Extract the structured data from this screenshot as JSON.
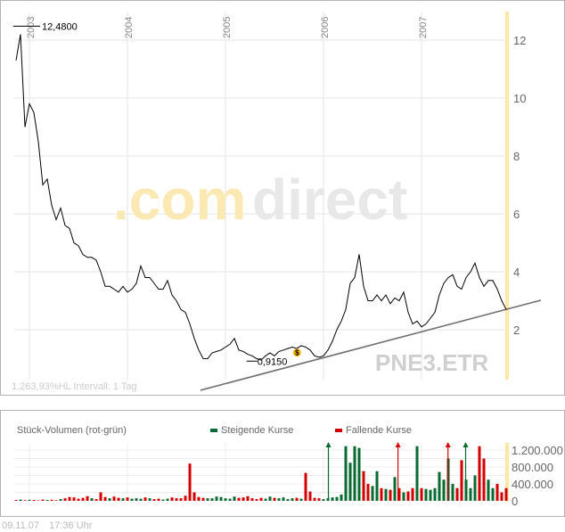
{
  "chart_data": [
    {
      "type": "line",
      "title": "PNE3.ETR",
      "symbol": "PNE3.ETR",
      "watermark_left": ".com",
      "watermark_right": "direct",
      "info": "1.263,93%HL  Intervall: 1 Tag",
      "x_tick_labels": [
        "2003",
        "2004",
        "2005",
        "2006",
        "2007"
      ],
      "x_ticks": [
        2003,
        2004,
        2005,
        2006,
        2007
      ],
      "y_tick_labels": [
        "2",
        "4",
        "6",
        "8",
        "10",
        "12"
      ],
      "y_ticks": [
        2,
        4,
        6,
        8,
        10,
        12
      ],
      "ylim": [
        0,
        13.3
      ],
      "xlim": [
        2002.864,
        2007.864
      ],
      "grid": true,
      "high_label": "12,4800",
      "high": {
        "t": 2002.89,
        "value": 12.48
      },
      "low_label": "0,9150",
      "low": {
        "t": 2005.27,
        "value": 0.915
      },
      "dividend_marker": {
        "label": "$",
        "t": 2005.73,
        "value": 1.15
      },
      "series": [
        {
          "name": "Kurs",
          "t_start": 2002.864,
          "t_step": 0.04545,
          "values": [
            11.3,
            12.2,
            9.0,
            9.8,
            9.5,
            8.5,
            7.0,
            7.2,
            6.3,
            5.8,
            6.2,
            5.6,
            5.5,
            5.0,
            4.9,
            4.6,
            4.5,
            4.5,
            4.4,
            4.0,
            3.5,
            3.5,
            3.4,
            3.3,
            3.5,
            3.3,
            3.4,
            3.6,
            4.2,
            3.8,
            3.8,
            3.6,
            3.4,
            3.4,
            3.7,
            3.2,
            3.0,
            2.7,
            2.6,
            2.2,
            1.7,
            1.3,
            1.0,
            1.0,
            1.2,
            1.25,
            1.3,
            1.4,
            1.5,
            1.7,
            1.3,
            1.25,
            1.15,
            1.1,
            1.0,
            0.95,
            1.1,
            1.2,
            1.1,
            1.25,
            1.3,
            1.35,
            1.4,
            1.35,
            1.45,
            1.4,
            1.3,
            1.1,
            1.05,
            1.1,
            1.3,
            1.6,
            2.0,
            2.3,
            2.7,
            3.6,
            3.8,
            4.6,
            3.5,
            3.0,
            3.0,
            3.2,
            3.0,
            3.2,
            2.9,
            3.1,
            3.0,
            3.3,
            2.6,
            2.2,
            2.3,
            2.1,
            2.2,
            2.4,
            2.6,
            3.2,
            3.6,
            3.8,
            3.9,
            3.5,
            3.4,
            3.8,
            4.0,
            4.3,
            3.8,
            3.5,
            3.7,
            3.7,
            3.4,
            3.0,
            2.7
          ]
        }
      ],
      "trendline": [
        {
          "t": 2004.745,
          "value": -0.09
        },
        {
          "t": 2008.218,
          "value": 3.02
        }
      ]
    },
    {
      "type": "bar",
      "title": "Stück-Volumen (rot-grün)",
      "legend": [
        {
          "label": "Steigende Kurse",
          "color": "#0a6b32"
        },
        {
          "label": "Fallende Kurse",
          "color": "#d40000"
        }
      ],
      "y_tick_labels": [
        "0",
        "400.000",
        "800.000",
        "1.200.000"
      ],
      "y_ticks": [
        0,
        400000,
        800000,
        1200000
      ],
      "ylim": [
        0,
        1300000
      ],
      "values_thousands": [
        20,
        30,
        15,
        25,
        20,
        10,
        30,
        20,
        25,
        15,
        40,
        60,
        90,
        80,
        50,
        70,
        110,
        60,
        40,
        200,
        90,
        60,
        100,
        70,
        60,
        80,
        50,
        60,
        50,
        80,
        60,
        40,
        50,
        30,
        50,
        80,
        60,
        60,
        120,
        880,
        200,
        90,
        70,
        60,
        60,
        100,
        90,
        60,
        50,
        100,
        70,
        80,
        110,
        60,
        40,
        70,
        50,
        100,
        70,
        60,
        80,
        40,
        60,
        70,
        50,
        660,
        220,
        70,
        60,
        40,
        60,
        80,
        90,
        150,
        1400,
        900,
        1300,
        1250,
        700,
        400,
        350,
        700,
        300,
        280,
        260,
        560,
        300,
        200,
        220,
        300,
        1400,
        300,
        280,
        260,
        300,
        680,
        500,
        1000,
        400,
        300,
        960,
        500,
        300,
        600,
        1400,
        1000,
        500,
        300,
        400,
        200,
        300
      ],
      "clipped_peaks": [
        {
          "t": 2006.05,
          "color": "#0a6b32"
        },
        {
          "t": 2006.76,
          "color": "#d40000"
        },
        {
          "t": 2007.27,
          "color": "#d40000"
        },
        {
          "t": 2007.45,
          "color": "#0a6b32"
        }
      ]
    }
  ],
  "footer": {
    "date": "09.11.07",
    "time": "17:36 Uhr"
  },
  "colors": {
    "up": "#0a6b32",
    "down": "#d40000",
    "grid": "#e6e6e6",
    "highlight": "#fde9a6"
  }
}
